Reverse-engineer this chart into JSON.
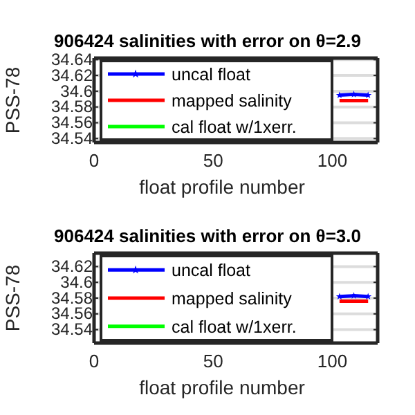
{
  "chart_data": [
    {
      "type": "line",
      "title": "906424 salinities with error on θ=2.9",
      "xlabel": "float profile number",
      "ylabel": "PSS-78",
      "xlim": [
        0,
        119
      ],
      "xticks": [
        0,
        50,
        100
      ],
      "ylim": [
        34.535,
        34.642
      ],
      "yticks": [
        34.54,
        34.56,
        34.58,
        34.6,
        34.62,
        34.64
      ],
      "grid": "y",
      "legend": "left",
      "x": [
        103,
        109,
        115
      ],
      "series": [
        {
          "name": "uncal float",
          "color": "#0000ff",
          "marker": "star",
          "values": [
            34.595,
            34.596,
            34.595
          ]
        },
        {
          "name": "mapped salinity",
          "color": "#ff0000",
          "marker": "none",
          "values": [
            34.588,
            34.588,
            34.588
          ]
        },
        {
          "name": "cal float w/1xerr.",
          "color": "#00ff00",
          "marker": "none",
          "values": [
            null,
            null,
            null
          ]
        }
      ]
    },
    {
      "type": "line",
      "title": "906424 salinities with error on θ=3.0",
      "xlabel": "float profile number",
      "ylabel": "PSS-78",
      "xlim": [
        0,
        119
      ],
      "xticks": [
        0,
        50,
        100
      ],
      "ylim": [
        34.523,
        34.637
      ],
      "yticks": [
        34.54,
        34.56,
        34.58,
        34.6,
        34.62
      ],
      "grid": "y",
      "legend": "left",
      "x": [
        103,
        109,
        115
      ],
      "series": [
        {
          "name": "uncal float",
          "color": "#0000ff",
          "marker": "star",
          "values": [
            34.582,
            34.583,
            34.582
          ]
        },
        {
          "name": "mapped salinity",
          "color": "#ff0000",
          "marker": "none",
          "values": [
            34.576,
            34.576,
            34.576
          ]
        },
        {
          "name": "cal float w/1xerr.",
          "color": "#00ff00",
          "marker": "none",
          "values": [
            null,
            null,
            null
          ]
        }
      ]
    }
  ]
}
